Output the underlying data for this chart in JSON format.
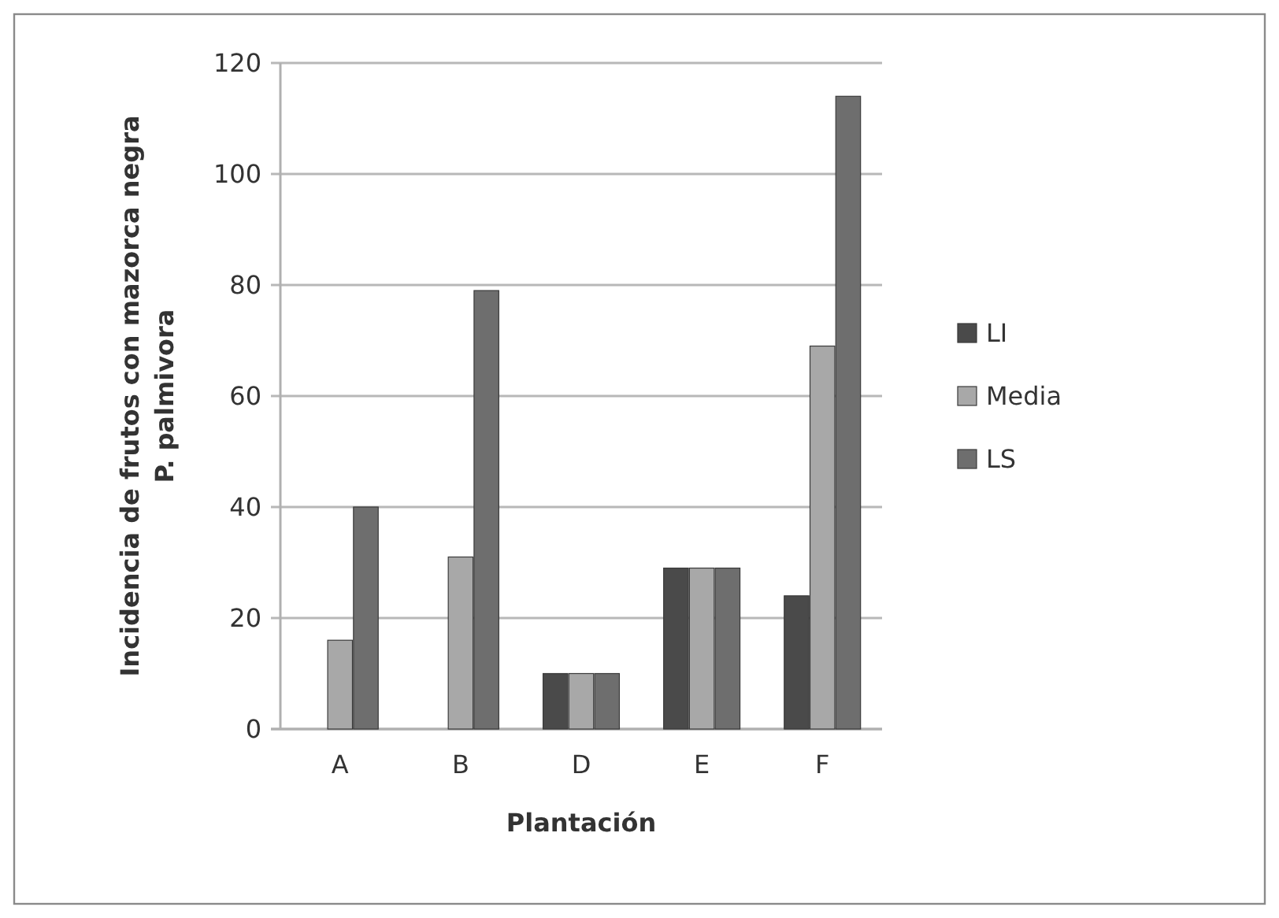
{
  "chart_data": {
    "type": "bar",
    "xlabel": "Plantación",
    "ylabel": "Incidencia de frutos con mazorca negra\nP. palmivora",
    "categories": [
      "A",
      "B",
      "D",
      "E",
      "F"
    ],
    "series": [
      {
        "name": "LI",
        "color": "#4a4a4a",
        "values": [
          0,
          0,
          10,
          29,
          24
        ]
      },
      {
        "name": "Media",
        "color": "#a8a8a8",
        "values": [
          16,
          31,
          10,
          29,
          69
        ]
      },
      {
        "name": "LS",
        "color": "#6e6e6e",
        "values": [
          40,
          79,
          10,
          29,
          114
        ]
      }
    ],
    "ylim": [
      0,
      120
    ],
    "yticks": [
      0,
      20,
      40,
      60,
      80,
      100,
      120
    ],
    "grid": "y",
    "legend": "right"
  }
}
